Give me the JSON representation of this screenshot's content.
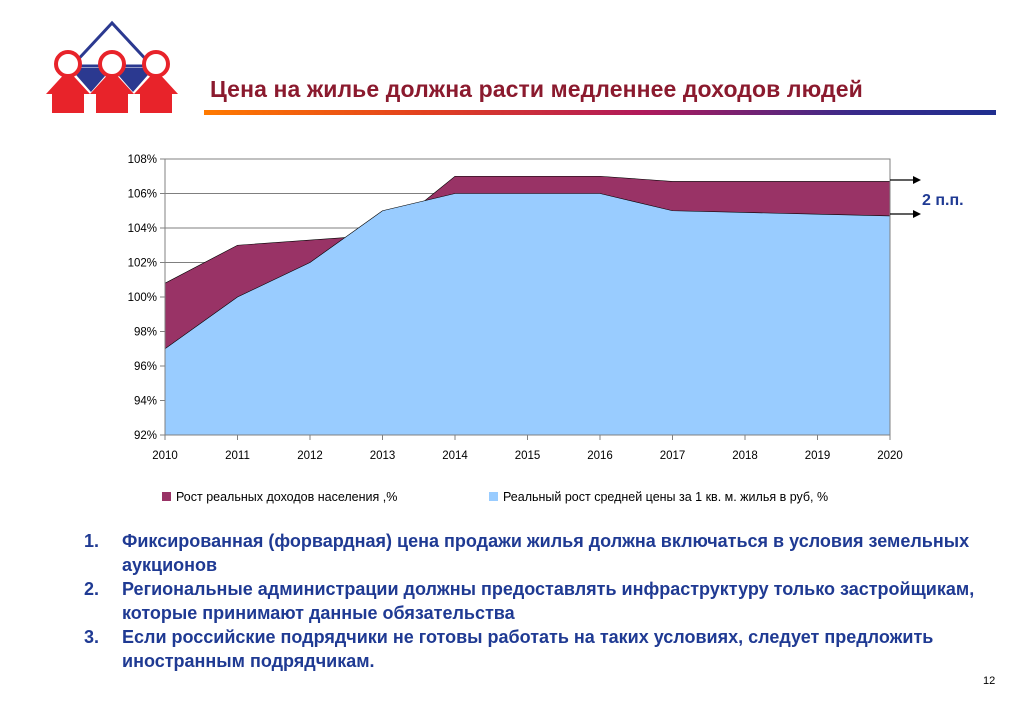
{
  "title": "Цена на жилье должна расти медленнее доходов людей",
  "page_number": "12",
  "colors": {
    "title": "#8b1a2e",
    "income_fill": "#993366",
    "price_fill": "#99ccff",
    "text_blue": "#1f3a93",
    "logo_red": "#e8232a",
    "logo_blue": "#2b3990"
  },
  "chart_data": {
    "type": "area",
    "x": [
      2010,
      2011,
      2012,
      2013,
      2014,
      2015,
      2016,
      2017,
      2018,
      2019,
      2020
    ],
    "ylim": [
      92,
      108
    ],
    "yticks": [
      92,
      94,
      96,
      98,
      100,
      102,
      104,
      106,
      108
    ],
    "ytick_format": "%",
    "grid": true,
    "legend_position": "bottom",
    "series": [
      {
        "name": "Рост реальных доходов населения ,%",
        "color": "#993366",
        "values": [
          100.8,
          103.0,
          103.3,
          103.6,
          107.0,
          107.0,
          107.0,
          106.7,
          106.7,
          106.7,
          106.7
        ]
      },
      {
        "name": "Реальный рост средней цены за 1 кв. м. жилья в руб, %",
        "color": "#99ccff",
        "values": [
          97.0,
          100.0,
          102.0,
          105.0,
          106.0,
          106.0,
          106.0,
          105.0,
          104.9,
          104.8,
          104.7
        ]
      }
    ],
    "annotation": "2 п.п."
  },
  "notes": [
    {
      "num": "1.",
      "text": "Фиксированная (форвардная) цена продажи жилья должна включаться в условия земельных аукционов"
    },
    {
      "num": "2.",
      "text": "Региональные администрации должны предоставлять инфраструктуру только застройщикам, которые принимают данные обязательства"
    },
    {
      "num": "3.",
      "text": "Если российские подрядчики не готовы работать на таких условиях, следует предложить иностранным подрядчикам."
    }
  ]
}
